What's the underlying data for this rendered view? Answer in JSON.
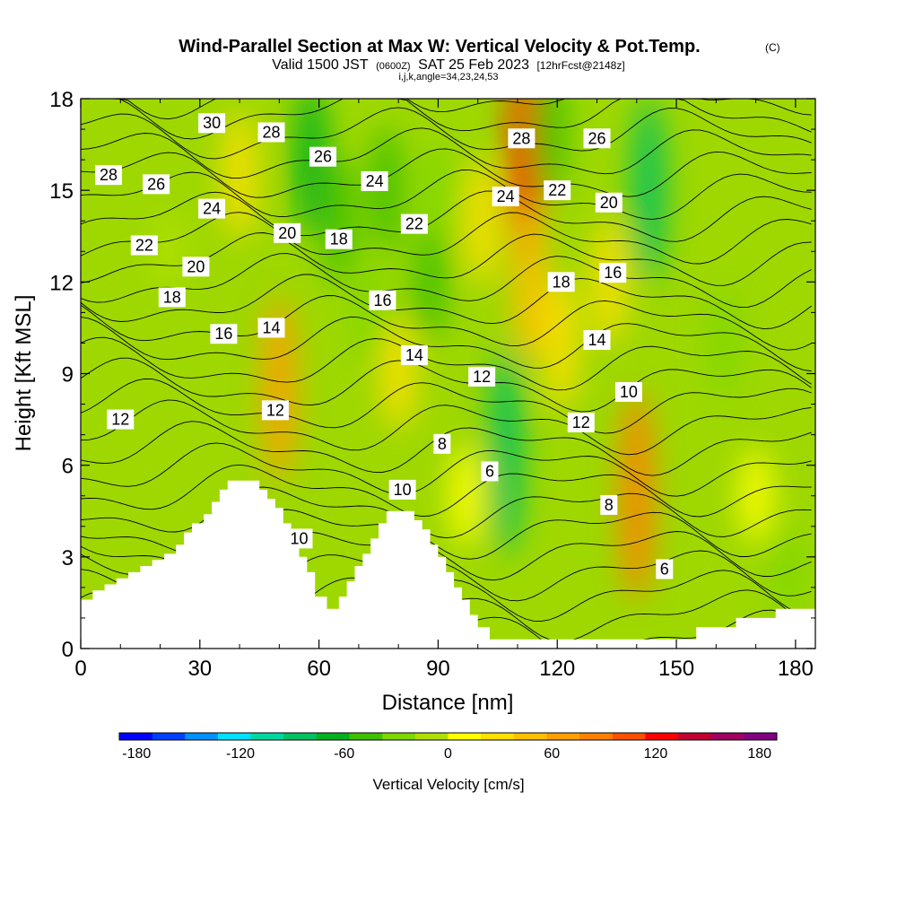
{
  "title": {
    "main": "Wind-Parallel Section at Max W: Vertical Velocity & Pot.Temp.",
    "copyright": "(C)",
    "valid_prefix": "Valid 1500 JST",
    "valid_utc": "(0600Z)",
    "valid_date": "SAT 25 Feb 2023",
    "forecast": "[12hrFcst@2148z]",
    "indices": "i,j,k,angle=34,23,24,53"
  },
  "chart_data": {
    "type": "heatmap",
    "xlabel": "Distance [nm]",
    "ylabel": "Height [Kft MSL]",
    "xlim": [
      0,
      185
    ],
    "ylim": [
      0,
      18
    ],
    "x_ticks": [
      "0",
      "30",
      "60",
      "90",
      "120",
      "150",
      "180"
    ],
    "y_ticks": [
      "0",
      "3",
      "6",
      "9",
      "12",
      "15",
      "18"
    ],
    "colorbar": {
      "label": "Vertical Velocity [cm/s]",
      "range": [
        -190,
        190
      ],
      "bin_width": 20,
      "tick_labels": [
        "-180",
        "-120",
        "-60",
        "0",
        "60",
        "120",
        "180"
      ],
      "colors": [
        "#0000ff",
        "#0040ff",
        "#0090ff",
        "#00e0ff",
        "#00d8a0",
        "#00c060",
        "#00b020",
        "#40c000",
        "#80d800",
        "#b0e000",
        "#ffff00",
        "#ffe000",
        "#ffc000",
        "#ffa000",
        "#ff8000",
        "#ff5000",
        "#ff0000",
        "#c00030",
        "#a00060",
        "#800080"
      ]
    },
    "velocity_features": [
      {
        "x": 22,
        "y": 13,
        "w": 8
      },
      {
        "x": 40,
        "y": 15.5,
        "w": 40
      },
      {
        "x": 50,
        "y": 8.5,
        "w": 75
      },
      {
        "x": 58,
        "y": 16,
        "w": -55
      },
      {
        "x": 65,
        "y": 14,
        "w": -40
      },
      {
        "x": 73,
        "y": 11,
        "w": -30
      },
      {
        "x": 80,
        "y": 9,
        "w": 30
      },
      {
        "x": 77,
        "y": 15,
        "w": -40
      },
      {
        "x": 88,
        "y": 12,
        "w": -35
      },
      {
        "x": 90,
        "y": 15,
        "w": -20
      },
      {
        "x": 97,
        "y": 5,
        "w": 25
      },
      {
        "x": 101,
        "y": 14,
        "w": 40
      },
      {
        "x": 107,
        "y": 6.5,
        "w": -90
      },
      {
        "x": 112,
        "y": 16,
        "w": 130
      },
      {
        "x": 113,
        "y": 12,
        "w": 60
      },
      {
        "x": 118,
        "y": 17,
        "w": -50
      },
      {
        "x": 121,
        "y": 10,
        "w": 45
      },
      {
        "x": 133,
        "y": 12,
        "w": 40
      },
      {
        "x": 140,
        "y": 5,
        "w": 90
      },
      {
        "x": 143,
        "y": 15,
        "w": -75
      },
      {
        "x": 162,
        "y": 10,
        "w": -30
      },
      {
        "x": 170,
        "y": 5,
        "w": 20
      },
      {
        "x": 178,
        "y": 2.5,
        "w": -20
      }
    ],
    "contours": {
      "line_color": "#000000",
      "levels": [
        5,
        6,
        7,
        8,
        9,
        10,
        11,
        12,
        13,
        14,
        15,
        16,
        17,
        18,
        19,
        20,
        21,
        22,
        23,
        24,
        25,
        26,
        27,
        28,
        29,
        30,
        31
      ],
      "labels": [
        {
          "text": "30",
          "x": 33,
          "y": 17.2
        },
        {
          "text": "28",
          "x": 7,
          "y": 15.5
        },
        {
          "text": "26",
          "x": 19,
          "y": 15.2
        },
        {
          "text": "24",
          "x": 33,
          "y": 14.4
        },
        {
          "text": "22",
          "x": 16,
          "y": 13.2
        },
        {
          "text": "20",
          "x": 29,
          "y": 12.5
        },
        {
          "text": "18",
          "x": 23,
          "y": 11.5
        },
        {
          "text": "16",
          "x": 36,
          "y": 10.3
        },
        {
          "text": "14",
          "x": 48,
          "y": 10.5
        },
        {
          "text": "12",
          "x": 10,
          "y": 7.5
        },
        {
          "text": "12",
          "x": 49,
          "y": 7.8
        },
        {
          "text": "28",
          "x": 48,
          "y": 16.9
        },
        {
          "text": "26",
          "x": 61,
          "y": 16.1
        },
        {
          "text": "20",
          "x": 52,
          "y": 13.6
        },
        {
          "text": "18",
          "x": 65,
          "y": 13.4
        },
        {
          "text": "24",
          "x": 74,
          "y": 15.3
        },
        {
          "text": "22",
          "x": 84,
          "y": 13.9
        },
        {
          "text": "16",
          "x": 76,
          "y": 11.4
        },
        {
          "text": "14",
          "x": 84,
          "y": 9.6
        },
        {
          "text": "12",
          "x": 101,
          "y": 8.9
        },
        {
          "text": "10",
          "x": 81,
          "y": 5.2
        },
        {
          "text": "10",
          "x": 55,
          "y": 3.6
        },
        {
          "text": "8",
          "x": 91,
          "y": 6.7
        },
        {
          "text": "6",
          "x": 103,
          "y": 5.8
        },
        {
          "text": "28",
          "x": 111,
          "y": 16.7
        },
        {
          "text": "26",
          "x": 130,
          "y": 16.7
        },
        {
          "text": "24",
          "x": 107,
          "y": 14.8
        },
        {
          "text": "22",
          "x": 120,
          "y": 15.0
        },
        {
          "text": "20",
          "x": 133,
          "y": 14.6
        },
        {
          "text": "18",
          "x": 121,
          "y": 12.0
        },
        {
          "text": "16",
          "x": 134,
          "y": 12.3
        },
        {
          "text": "14",
          "x": 130,
          "y": 10.1
        },
        {
          "text": "12",
          "x": 126,
          "y": 7.4
        },
        {
          "text": "10",
          "x": 138,
          "y": 8.4
        },
        {
          "text": "8",
          "x": 133,
          "y": 4.7
        },
        {
          "text": "6",
          "x": 147,
          "y": 2.6
        }
      ]
    },
    "terrain_profile": [
      [
        0,
        1.6
      ],
      [
        3,
        1.6
      ],
      [
        3,
        1.9
      ],
      [
        6,
        1.9
      ],
      [
        6,
        2.1
      ],
      [
        9,
        2.1
      ],
      [
        9,
        2.3
      ],
      [
        12,
        2.3
      ],
      [
        12,
        2.5
      ],
      [
        15,
        2.5
      ],
      [
        15,
        2.7
      ],
      [
        18,
        2.7
      ],
      [
        18,
        2.9
      ],
      [
        21,
        2.9
      ],
      [
        21,
        3.1
      ],
      [
        24,
        3.1
      ],
      [
        24,
        3.4
      ],
      [
        26,
        3.4
      ],
      [
        26,
        3.8
      ],
      [
        28,
        3.8
      ],
      [
        28,
        4.1
      ],
      [
        31,
        4.1
      ],
      [
        31,
        4.4
      ],
      [
        33,
        4.4
      ],
      [
        33,
        4.8
      ],
      [
        35,
        4.8
      ],
      [
        35,
        5.2
      ],
      [
        37,
        5.2
      ],
      [
        37,
        5.5
      ],
      [
        45,
        5.5
      ],
      [
        45,
        5.2
      ],
      [
        47,
        5.2
      ],
      [
        47,
        4.9
      ],
      [
        49,
        4.9
      ],
      [
        49,
        4.6
      ],
      [
        51,
        4.6
      ],
      [
        51,
        4.1
      ],
      [
        53,
        4.1
      ],
      [
        53,
        3.6
      ],
      [
        55,
        3.6
      ],
      [
        55,
        3.0
      ],
      [
        57,
        3.0
      ],
      [
        57,
        2.5
      ],
      [
        59,
        2.5
      ],
      [
        59,
        1.7
      ],
      [
        62,
        1.7
      ],
      [
        62,
        1.3
      ],
      [
        65,
        1.3
      ],
      [
        65,
        1.7
      ],
      [
        67,
        1.7
      ],
      [
        67,
        2.2
      ],
      [
        69,
        2.2
      ],
      [
        69,
        2.7
      ],
      [
        71,
        2.7
      ],
      [
        71,
        3.1
      ],
      [
        73,
        3.1
      ],
      [
        73,
        3.6
      ],
      [
        75,
        3.6
      ],
      [
        75,
        4.1
      ],
      [
        77,
        4.1
      ],
      [
        77,
        4.5
      ],
      [
        84,
        4.5
      ],
      [
        84,
        4.2
      ],
      [
        86,
        4.2
      ],
      [
        86,
        3.9
      ],
      [
        88,
        3.9
      ],
      [
        88,
        3.4
      ],
      [
        90,
        3.4
      ],
      [
        90,
        3.0
      ],
      [
        92,
        3.0
      ],
      [
        92,
        2.5
      ],
      [
        94,
        2.5
      ],
      [
        94,
        2.0
      ],
      [
        96,
        2.0
      ],
      [
        96,
        1.6
      ],
      [
        98,
        1.6
      ],
      [
        98,
        1.1
      ],
      [
        100,
        1.1
      ],
      [
        100,
        0.7
      ],
      [
        103,
        0.7
      ],
      [
        103,
        0.3
      ],
      [
        130,
        0.3
      ],
      [
        130,
        0.3
      ],
      [
        155,
        0.3
      ],
      [
        155,
        0.7
      ],
      [
        165,
        0.7
      ],
      [
        165,
        1.0
      ],
      [
        175,
        1.0
      ],
      [
        175,
        1.3
      ],
      [
        185,
        1.3
      ]
    ]
  }
}
